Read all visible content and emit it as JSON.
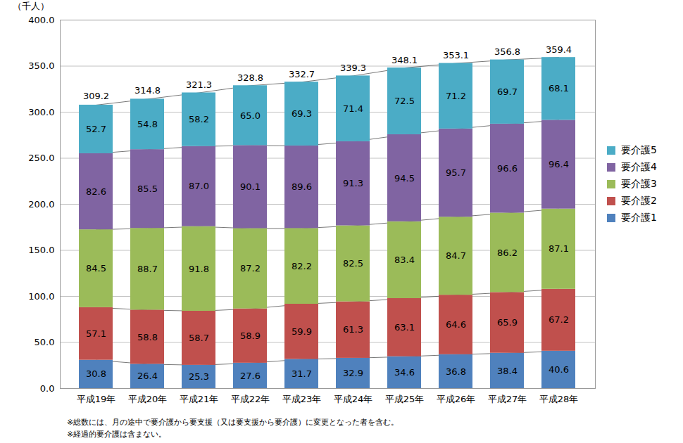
{
  "chart_data": {
    "type": "bar",
    "stacked": true,
    "data_labels": true,
    "grid": true,
    "legend": "right",
    "y_label": "（千人）",
    "categories": [
      "平成19年",
      "平成20年",
      "平成21年",
      "平成22年",
      "平成23年",
      "平成24年",
      "平成25年",
      "平成26年",
      "平成27年",
      "平成28年"
    ],
    "series": [
      {
        "name": "要介護1",
        "color": "#4f81bd",
        "values": [
          30.8,
          26.4,
          25.3,
          27.6,
          31.7,
          32.9,
          34.6,
          36.8,
          38.4,
          40.6
        ],
        "value_labels": [
          "30.8",
          "26.4",
          "25.3",
          "27.6",
          "31.7",
          "32.9",
          "34.6",
          "36.8",
          "38.4",
          "40.6"
        ]
      },
      {
        "name": "要介護2",
        "color": "#c0504d",
        "values": [
          57.1,
          58.8,
          58.7,
          58.9,
          59.9,
          61.3,
          63.1,
          64.6,
          65.9,
          67.2
        ],
        "value_labels": [
          "57.1",
          "58.8",
          "58.7",
          "58.9",
          "59.9",
          "61.3",
          "63.1",
          "64.6",
          "65.9",
          "67.2"
        ]
      },
      {
        "name": "要介護3",
        "color": "#9bbb59",
        "values": [
          84.5,
          88.7,
          91.8,
          87.2,
          82.2,
          82.5,
          83.4,
          84.7,
          86.2,
          87.1
        ],
        "value_labels": [
          "84.5",
          "88.7",
          "91.8",
          "87.2",
          "82.2",
          "82.5",
          "83.4",
          "84.7",
          "86.2",
          "87.1"
        ]
      },
      {
        "name": "要介護4",
        "color": "#8064a2",
        "values": [
          82.6,
          85.5,
          87.0,
          90.1,
          89.6,
          91.3,
          94.5,
          95.7,
          96.6,
          96.4
        ],
        "value_labels": [
          "82.6",
          "85.5",
          "87.0",
          "90.1",
          "89.6",
          "91.3",
          "94.5",
          "95.7",
          "96.6",
          "96.4"
        ]
      },
      {
        "name": "要介護5",
        "color": "#4bacc6",
        "values": [
          52.7,
          54.8,
          58.2,
          65.0,
          69.3,
          71.4,
          72.5,
          71.2,
          69.7,
          68.1
        ],
        "value_labels": [
          "52.7",
          "54.8",
          "58.2",
          "65.0",
          "69.3",
          "71.4",
          "72.5",
          "71.2",
          "69.7",
          "68.1"
        ]
      }
    ],
    "totals": [
      309.2,
      314.8,
      321.3,
      328.8,
      332.7,
      339.3,
      348.1,
      353.1,
      356.8,
      359.4
    ],
    "ylim": [
      0,
      400
    ],
    "yticks": [
      {
        "value": 0,
        "label": "0.0"
      },
      {
        "value": 50,
        "label": "50.0"
      },
      {
        "value": 100,
        "label": "100.0"
      },
      {
        "value": 150,
        "label": "150.0"
      },
      {
        "value": 200,
        "label": "200.0"
      },
      {
        "value": 250,
        "label": "250.0"
      },
      {
        "value": 300,
        "label": "300.0"
      },
      {
        "value": 350,
        "label": "350.0"
      },
      {
        "value": 400,
        "label": "400.0"
      }
    ],
    "notes": [
      "※総数には、月の途中で要介護から要支援（又は要支援から要介護）に変更となった者を含む。",
      "※経過的要介護は含まない。"
    ]
  }
}
